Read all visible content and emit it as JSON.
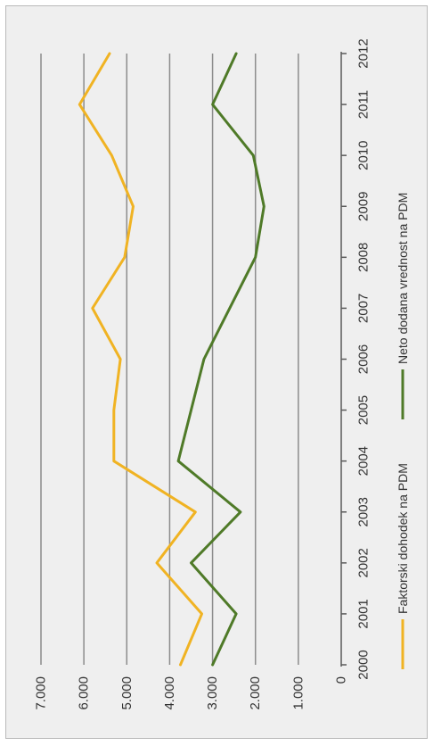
{
  "chart_data": {
    "type": "line",
    "orientation": "rotated-90-clockwise",
    "x": [
      "2000",
      "2001",
      "2002",
      "2003",
      "2004",
      "2005",
      "2006",
      "2007",
      "2008",
      "2009",
      "2010",
      "2011",
      "2012"
    ],
    "y_ticks": [
      "0",
      "1.000",
      "2.000",
      "3.000",
      "4.000",
      "5.000",
      "6.000",
      "7.000"
    ],
    "ylim": [
      0,
      7000
    ],
    "grid": true,
    "legend_position": "bottom",
    "series": [
      {
        "name": "Faktorski dohodek na PDM",
        "color": "#f0b323",
        "values": [
          3750,
          3250,
          4300,
          3400,
          5300,
          5300,
          5150,
          5800,
          5050,
          4850,
          5350,
          6100,
          5400
        ]
      },
      {
        "name": "Neto dodana vrednost na PDM",
        "color": "#4f7a28",
        "values": [
          3000,
          2450,
          3500,
          2350,
          3800,
          3500,
          3200,
          2600,
          2000,
          1800,
          2050,
          3000,
          2450
        ]
      }
    ]
  }
}
